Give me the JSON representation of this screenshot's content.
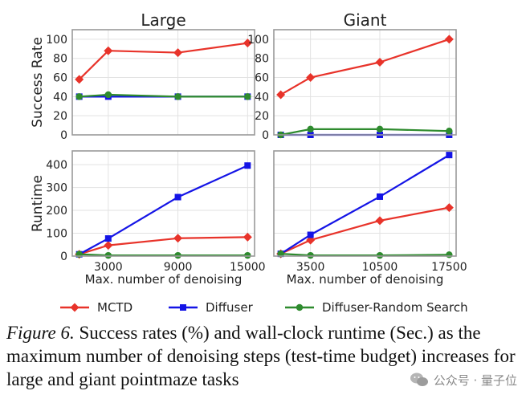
{
  "panel_titles": [
    "Large",
    "Giant"
  ],
  "xlabel": "Max. number of denoising",
  "ylabels": {
    "top": "Success Rate",
    "bottom": "Runtime"
  },
  "legend": [
    {
      "name": "MCTD",
      "color": "#e8332a",
      "marker": "diamond"
    },
    {
      "name": "Diffuser",
      "color": "#1414e6",
      "marker": "square"
    },
    {
      "name": "Diffuser-Random Search",
      "color": "#2e8b2e",
      "marker": "circle"
    }
  ],
  "chart_data": [
    {
      "type": "line",
      "panel": "Large - Success Rate",
      "title": "Large",
      "xlabel": "",
      "ylabel": "Success Rate",
      "x": [
        500,
        3000,
        9000,
        15000
      ],
      "xticks": [
        3000,
        9000,
        15000
      ],
      "xtick_labels": [],
      "xlim": [
        -100,
        15600
      ],
      "ylim": [
        0,
        110
      ],
      "yticks": [
        0,
        20,
        40,
        60,
        80,
        100
      ],
      "grid": true,
      "series": [
        {
          "name": "MCTD",
          "values": [
            58,
            88,
            86,
            96
          ]
        },
        {
          "name": "Diffuser",
          "values": [
            40,
            40,
            40,
            40
          ]
        },
        {
          "name": "Diffuser-Random Search",
          "values": [
            40,
            42,
            40,
            40
          ]
        }
      ]
    },
    {
      "type": "line",
      "panel": "Giant - Success Rate",
      "title": "Giant",
      "xlabel": "",
      "ylabel": "",
      "x": [
        500,
        3500,
        10500,
        17500
      ],
      "xticks": [
        3500,
        10500,
        17500
      ],
      "xtick_labels": [],
      "xlim": [
        -200,
        18200
      ],
      "ylim": [
        0,
        110
      ],
      "yticks": [
        0,
        20,
        40,
        60,
        80,
        100
      ],
      "grid": true,
      "series": [
        {
          "name": "MCTD",
          "values": [
            42,
            60,
            76,
            100
          ]
        },
        {
          "name": "Diffuser",
          "values": [
            0,
            0,
            0,
            0
          ]
        },
        {
          "name": "Diffuser-Random Search",
          "values": [
            0,
            6,
            6,
            4
          ]
        }
      ]
    },
    {
      "type": "line",
      "panel": "Large - Runtime",
      "title": "",
      "xlabel": "Max. number of denoising",
      "ylabel": "Runtime",
      "x": [
        500,
        3000,
        9000,
        15000
      ],
      "xticks": [
        3000,
        9000,
        15000
      ],
      "xtick_labels": [
        "3000",
        "9000",
        "15000"
      ],
      "xlim": [
        -100,
        15600
      ],
      "ylim": [
        0,
        460
      ],
      "yticks": [
        0,
        100,
        200,
        300,
        400
      ],
      "grid": true,
      "series": [
        {
          "name": "MCTD",
          "values": [
            8,
            47,
            78,
            83
          ]
        },
        {
          "name": "Diffuser",
          "values": [
            8,
            77,
            258,
            396
          ]
        },
        {
          "name": "Diffuser-Random Search",
          "values": [
            8,
            3,
            3,
            3
          ]
        }
      ]
    },
    {
      "type": "line",
      "panel": "Giant - Runtime",
      "title": "",
      "xlabel": "Max. number of denoising",
      "ylabel": "",
      "x": [
        500,
        3500,
        10500,
        17500
      ],
      "xticks": [
        3500,
        10500,
        17500
      ],
      "xtick_labels": [
        "3500",
        "10500",
        "17500"
      ],
      "xlim": [
        -200,
        18200
      ],
      "ylim": [
        0,
        460
      ],
      "yticks": [],
      "grid": true,
      "series": [
        {
          "name": "MCTD",
          "values": [
            10,
            70,
            155,
            212
          ]
        },
        {
          "name": "Diffuser",
          "values": [
            10,
            93,
            260,
            442
          ]
        },
        {
          "name": "Diffuser-Random Search",
          "values": [
            10,
            3,
            3,
            6
          ]
        }
      ]
    }
  ],
  "caption": {
    "label": "Figure 6.",
    "text": "Success rates (%) and wall-clock runtime (Sec.) as the maximum number of denoising steps (test-time budget) increases for large and giant pointmaze tasks"
  },
  "watermark": {
    "text": "公众号 · 量子位"
  }
}
